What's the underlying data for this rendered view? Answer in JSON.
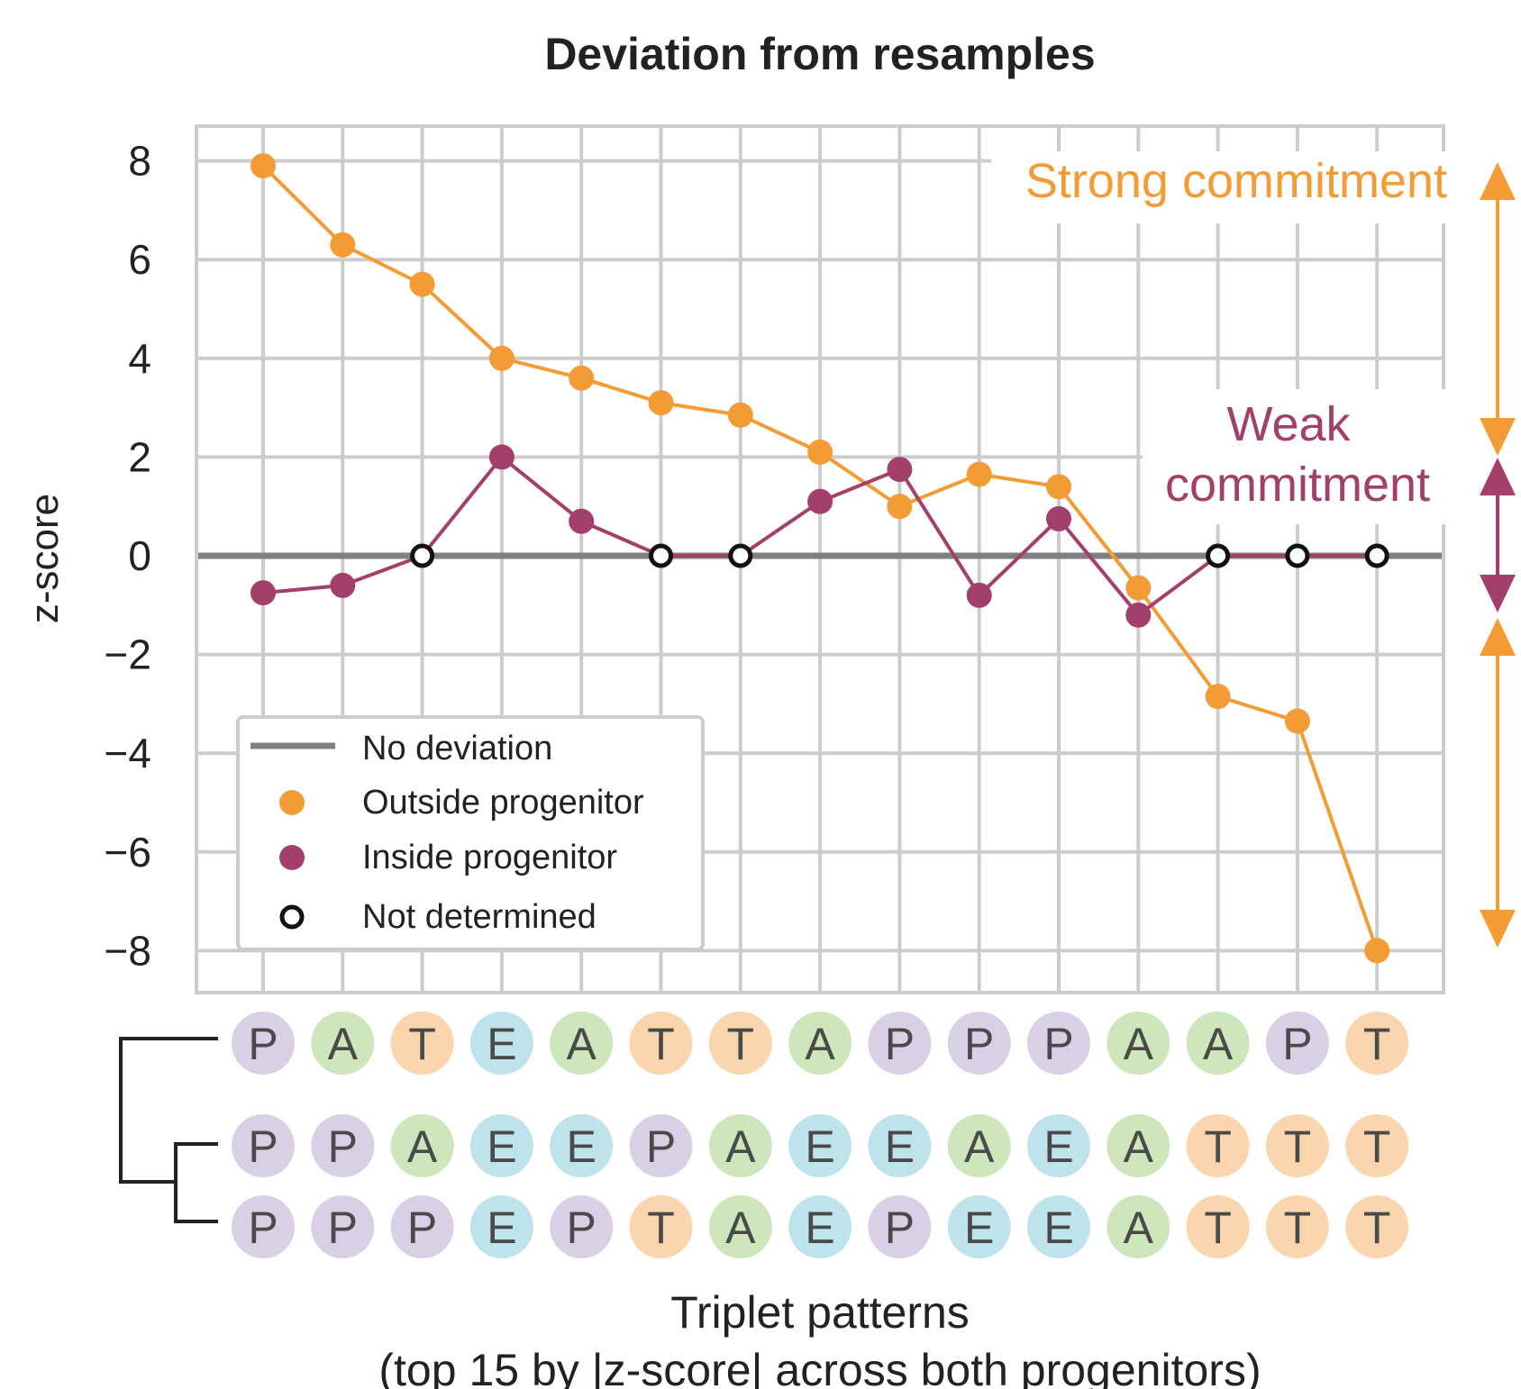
{
  "chart_data": {
    "type": "line",
    "title": "Deviation from resamples",
    "ylabel": "z-score",
    "xlabel": "Triplet patterns",
    "xlabel_sub": "(top 15 by |z-score| across both progenitors)",
    "ylim": [
      -8.8,
      8.8
    ],
    "yticks": [
      8,
      6,
      4,
      2,
      0,
      -2,
      -4,
      -6,
      -8
    ],
    "ytick_labels": [
      "8",
      "6",
      "4",
      "2",
      "0",
      "−2",
      "−4",
      "−6",
      "−8"
    ],
    "x_count": 15,
    "colors": {
      "outside": "#f39c35",
      "inside": "#a23f6b",
      "no_deviation": "#808080",
      "grid": "#cccccc"
    },
    "series": [
      {
        "name": "Outside progenitor",
        "key": "outside",
        "values": [
          7.9,
          6.3,
          5.5,
          4.0,
          3.6,
          3.1,
          2.85,
          2.1,
          1.0,
          1.65,
          1.4,
          -0.65,
          -2.85,
          -3.35,
          -8.0
        ]
      },
      {
        "name": "Inside progenitor",
        "key": "inside",
        "values": [
          -0.75,
          -0.6,
          0.0,
          2.0,
          0.7,
          0.0,
          0.0,
          1.1,
          1.75,
          -0.8,
          0.75,
          -1.2,
          0.0,
          0.0,
          0.0
        ],
        "not_determined_indices": [
          2,
          5,
          6,
          12,
          13,
          14
        ]
      }
    ],
    "legend": {
      "placement": "lower-left",
      "entries": [
        "No deviation",
        "Outside progenitor",
        "Inside progenitor",
        "Not determined"
      ]
    },
    "annotations": {
      "strong": "Strong commitment",
      "weak_line1": "Weak",
      "weak_line2": "commitment"
    },
    "pattern_rows": [
      [
        "P",
        "A",
        "T",
        "E",
        "A",
        "T",
        "T",
        "A",
        "P",
        "P",
        "P",
        "A",
        "A",
        "P",
        "T"
      ],
      [
        "P",
        "P",
        "A",
        "E",
        "E",
        "P",
        "A",
        "E",
        "E",
        "A",
        "E",
        "A",
        "T",
        "T",
        "T"
      ],
      [
        "P",
        "P",
        "P",
        "E",
        "P",
        "T",
        "A",
        "E",
        "P",
        "E",
        "E",
        "A",
        "T",
        "T",
        "T"
      ]
    ],
    "pattern_colors": {
      "P": "#d9d0e6",
      "A": "#cde6bb",
      "T": "#fbd5ad",
      "E": "#bee3ea"
    }
  }
}
